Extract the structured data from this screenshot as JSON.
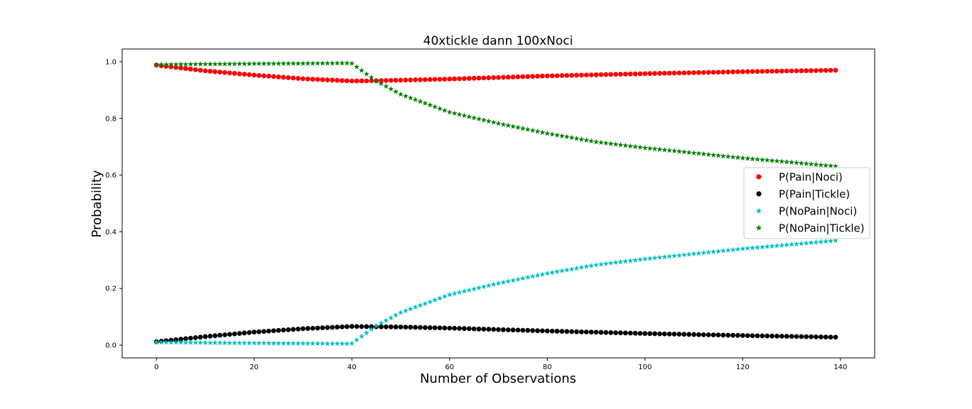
{
  "chart_data": {
    "type": "scatter",
    "title": "40xtickle dann 100xNoci",
    "xlabel": "Number of Observations",
    "ylabel": "Probability",
    "xlim": [
      -7,
      147
    ],
    "ylim": [
      -0.045,
      1.045
    ],
    "xticks": [
      0,
      20,
      40,
      60,
      80,
      100,
      120,
      140
    ],
    "yticks": [
      0.0,
      0.2,
      0.4,
      0.6,
      0.8,
      1.0
    ],
    "xtick_labels": [
      "0",
      "20",
      "40",
      "60",
      "80",
      "100",
      "120",
      "140"
    ],
    "ytick_labels": [
      "0.0",
      "0.2",
      "0.4",
      "0.6",
      "0.8",
      "1.0"
    ],
    "grid": false,
    "legend_position": "center-right",
    "x": {
      "start": 0,
      "end": 139,
      "step": 1
    },
    "series": [
      {
        "name": "P(Pain|Noci)",
        "marker": "circle",
        "color": "#ff0000",
        "anchors": [
          [
            0,
            0.988
          ],
          [
            10,
            0.968
          ],
          [
            20,
            0.953
          ],
          [
            30,
            0.94
          ],
          [
            40,
            0.932
          ],
          [
            45,
            0.933
          ],
          [
            60,
            0.939
          ],
          [
            80,
            0.95
          ],
          [
            100,
            0.958
          ],
          [
            120,
            0.965
          ],
          [
            139,
            0.97
          ]
        ]
      },
      {
        "name": "P(Pain|Tickle)",
        "marker": "circle",
        "color": "#000000",
        "anchors": [
          [
            0,
            0.012
          ],
          [
            10,
            0.03
          ],
          [
            20,
            0.046
          ],
          [
            30,
            0.058
          ],
          [
            40,
            0.066
          ],
          [
            50,
            0.064
          ],
          [
            60,
            0.06
          ],
          [
            80,
            0.05
          ],
          [
            100,
            0.041
          ],
          [
            120,
            0.034
          ],
          [
            139,
            0.028
          ]
        ]
      },
      {
        "name": "P(NoPain|Noci)",
        "marker": "star",
        "color": "#00bfbf",
        "anchors": [
          [
            0,
            0.01
          ],
          [
            20,
            0.007
          ],
          [
            39,
            0.005
          ],
          [
            40,
            0.006
          ],
          [
            45,
            0.068
          ],
          [
            50,
            0.115
          ],
          [
            60,
            0.178
          ],
          [
            70,
            0.218
          ],
          [
            80,
            0.253
          ],
          [
            90,
            0.283
          ],
          [
            100,
            0.304
          ],
          [
            110,
            0.322
          ],
          [
            120,
            0.34
          ],
          [
            130,
            0.355
          ],
          [
            139,
            0.369
          ]
        ]
      },
      {
        "name": "P(NoPain|Tickle)",
        "marker": "star",
        "color": "#008000",
        "anchors": [
          [
            0,
            0.99
          ],
          [
            20,
            0.993
          ],
          [
            39,
            0.995
          ],
          [
            40,
            0.994
          ],
          [
            45,
            0.932
          ],
          [
            50,
            0.885
          ],
          [
            60,
            0.822
          ],
          [
            70,
            0.782
          ],
          [
            80,
            0.747
          ],
          [
            90,
            0.717
          ],
          [
            100,
            0.696
          ],
          [
            110,
            0.678
          ],
          [
            120,
            0.66
          ],
          [
            130,
            0.645
          ],
          [
            139,
            0.631
          ]
        ]
      }
    ]
  }
}
